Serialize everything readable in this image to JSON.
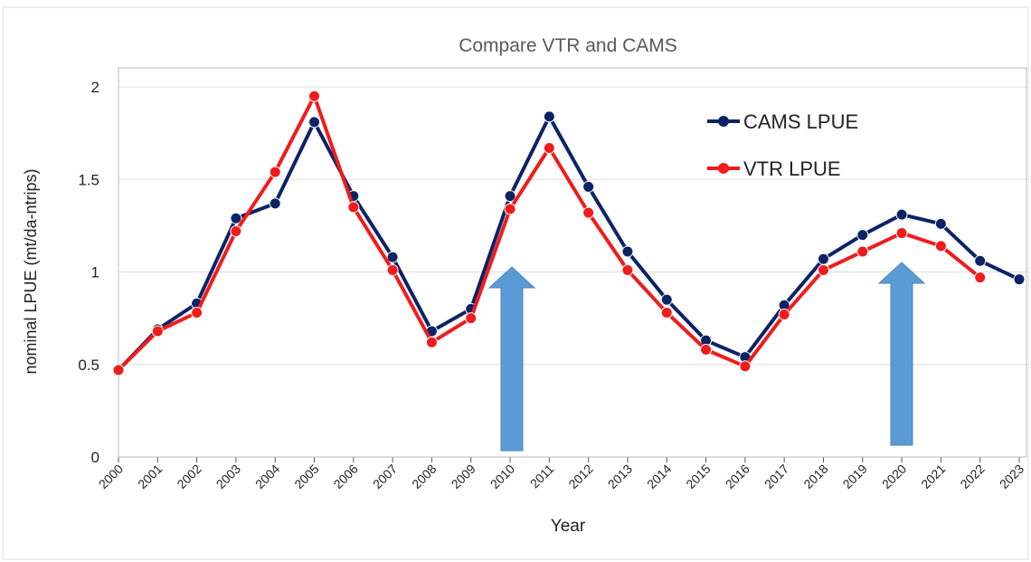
{
  "chart_data": {
    "type": "line",
    "title": "Compare VTR and CAMS",
    "x_label": "Year",
    "y_label": "nominal LPUE (mt/da-ntrips)",
    "categories": [
      "2000",
      "2001",
      "2002",
      "2003",
      "2004",
      "2005",
      "2006",
      "2007",
      "2008",
      "2009",
      "2010",
      "2011",
      "2012",
      "2013",
      "2014",
      "2015",
      "2016",
      "2017",
      "2018",
      "2019",
      "2020",
      "2021",
      "2022",
      "2023"
    ],
    "series": [
      {
        "name": "CAMS LPUE",
        "color": "#0c2366",
        "values": [
          0.47,
          0.69,
          0.83,
          1.29,
          1.37,
          1.81,
          1.41,
          1.08,
          0.68,
          0.8,
          1.41,
          1.84,
          1.46,
          1.11,
          0.85,
          0.63,
          0.54,
          0.82,
          1.07,
          1.2,
          1.31,
          1.26,
          1.06,
          0.96
        ]
      },
      {
        "name": "VTR LPUE",
        "color": "#f01c1c",
        "values": [
          0.47,
          0.68,
          0.78,
          1.22,
          1.54,
          1.95,
          1.35,
          1.01,
          0.62,
          0.75,
          1.34,
          1.67,
          1.32,
          1.01,
          0.78,
          0.58,
          0.49,
          0.77,
          1.01,
          1.11,
          1.21,
          1.14,
          0.97,
          null
        ]
      }
    ],
    "ylim": [
      0,
      2
    ],
    "yticks": [
      0,
      0.5,
      1,
      1.5,
      2
    ],
    "grid": true,
    "legend": "upper right"
  }
}
